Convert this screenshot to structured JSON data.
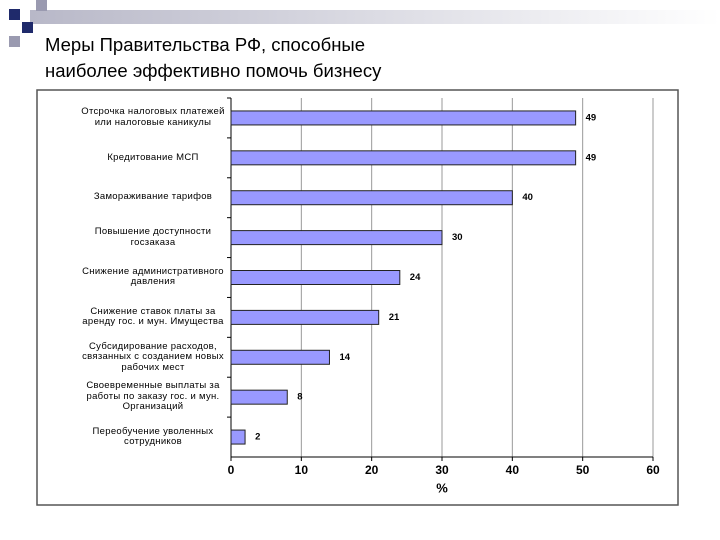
{
  "chart_data": {
    "type": "bar",
    "orientation": "horizontal",
    "title": "Меры Правительства РФ, способные наиболее эффективно помочь бизнесу",
    "categories": [
      "Отсрочка налоговых платежей или налоговые каникулы",
      "Кредитование МСП",
      "Замораживание тарифов",
      "Повышение доступности госзаказа",
      "Снижение административного давления",
      "Снижение ставок платы за аренду гос. и мун. Имущества",
      "Субсидирование расходов, связанных с созданием новых рабочих мест",
      "Своевременные выплаты за работы по заказу гос. и мун. Организаций",
      "Переобучение уволенных сотрудников"
    ],
    "values": [
      49,
      49,
      40,
      30,
      24,
      21,
      14,
      8,
      2
    ],
    "color": "#9999ff",
    "xlabel": "%",
    "xlim": [
      0,
      60
    ],
    "xticks": [
      0,
      10,
      20,
      30,
      40,
      50,
      60
    ],
    "grid": true
  }
}
